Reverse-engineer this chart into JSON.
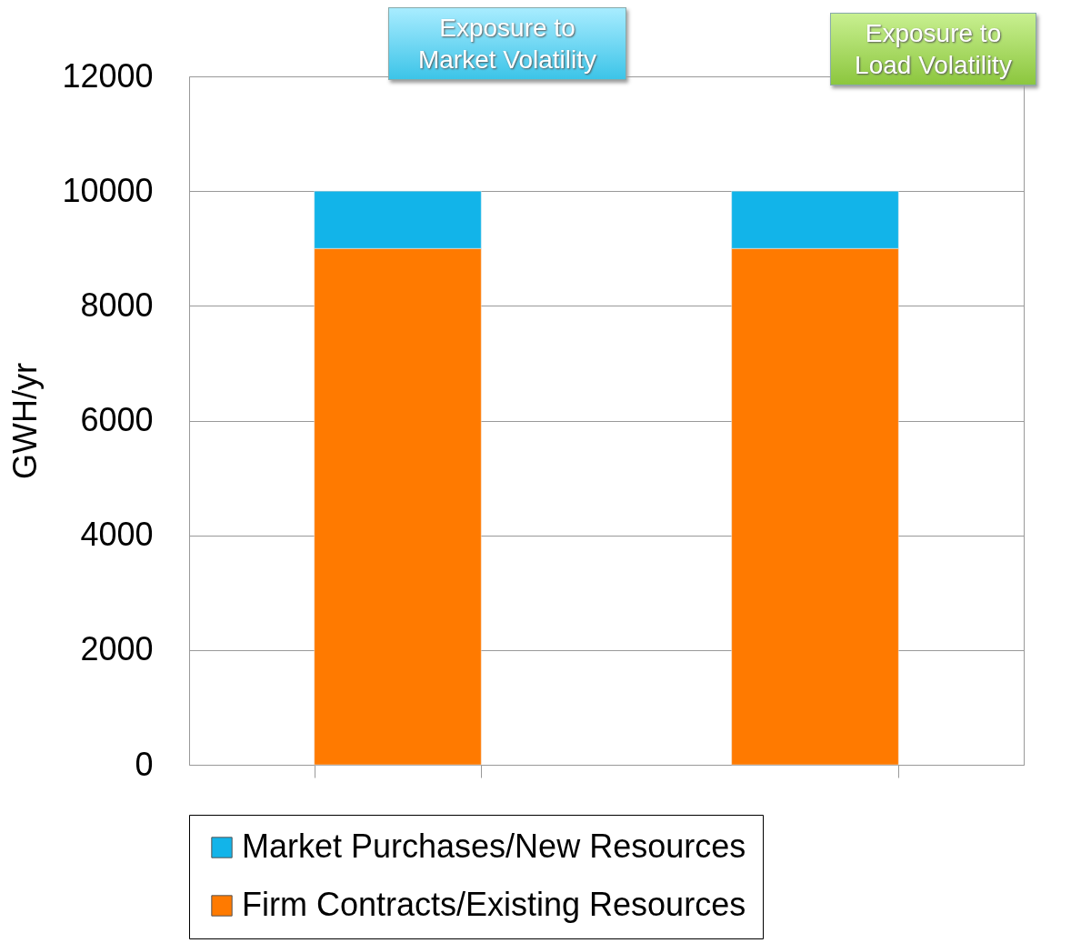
{
  "chart_data": {
    "type": "bar",
    "stacked": true,
    "ylabel": "GWH/yr",
    "categories": [
      null,
      null
    ],
    "series": [
      {
        "name": "Firm Contracts/Existing Resources",
        "color": "#ff7a00",
        "values": [
          9000,
          9000
        ]
      },
      {
        "name": "Market Purchases/New Resources",
        "color": "#12b4e9",
        "values": [
          1000,
          1000
        ]
      }
    ],
    "ylim": [
      0,
      12000
    ],
    "yticks": [
      0,
      2000,
      4000,
      6000,
      8000,
      10000,
      12000
    ],
    "grid": "y",
    "legend": "bottom",
    "tick_labels": "y",
    "annotations": [
      "Exposure to Market Volatility",
      "Exposure to Load Volatility"
    ]
  }
}
